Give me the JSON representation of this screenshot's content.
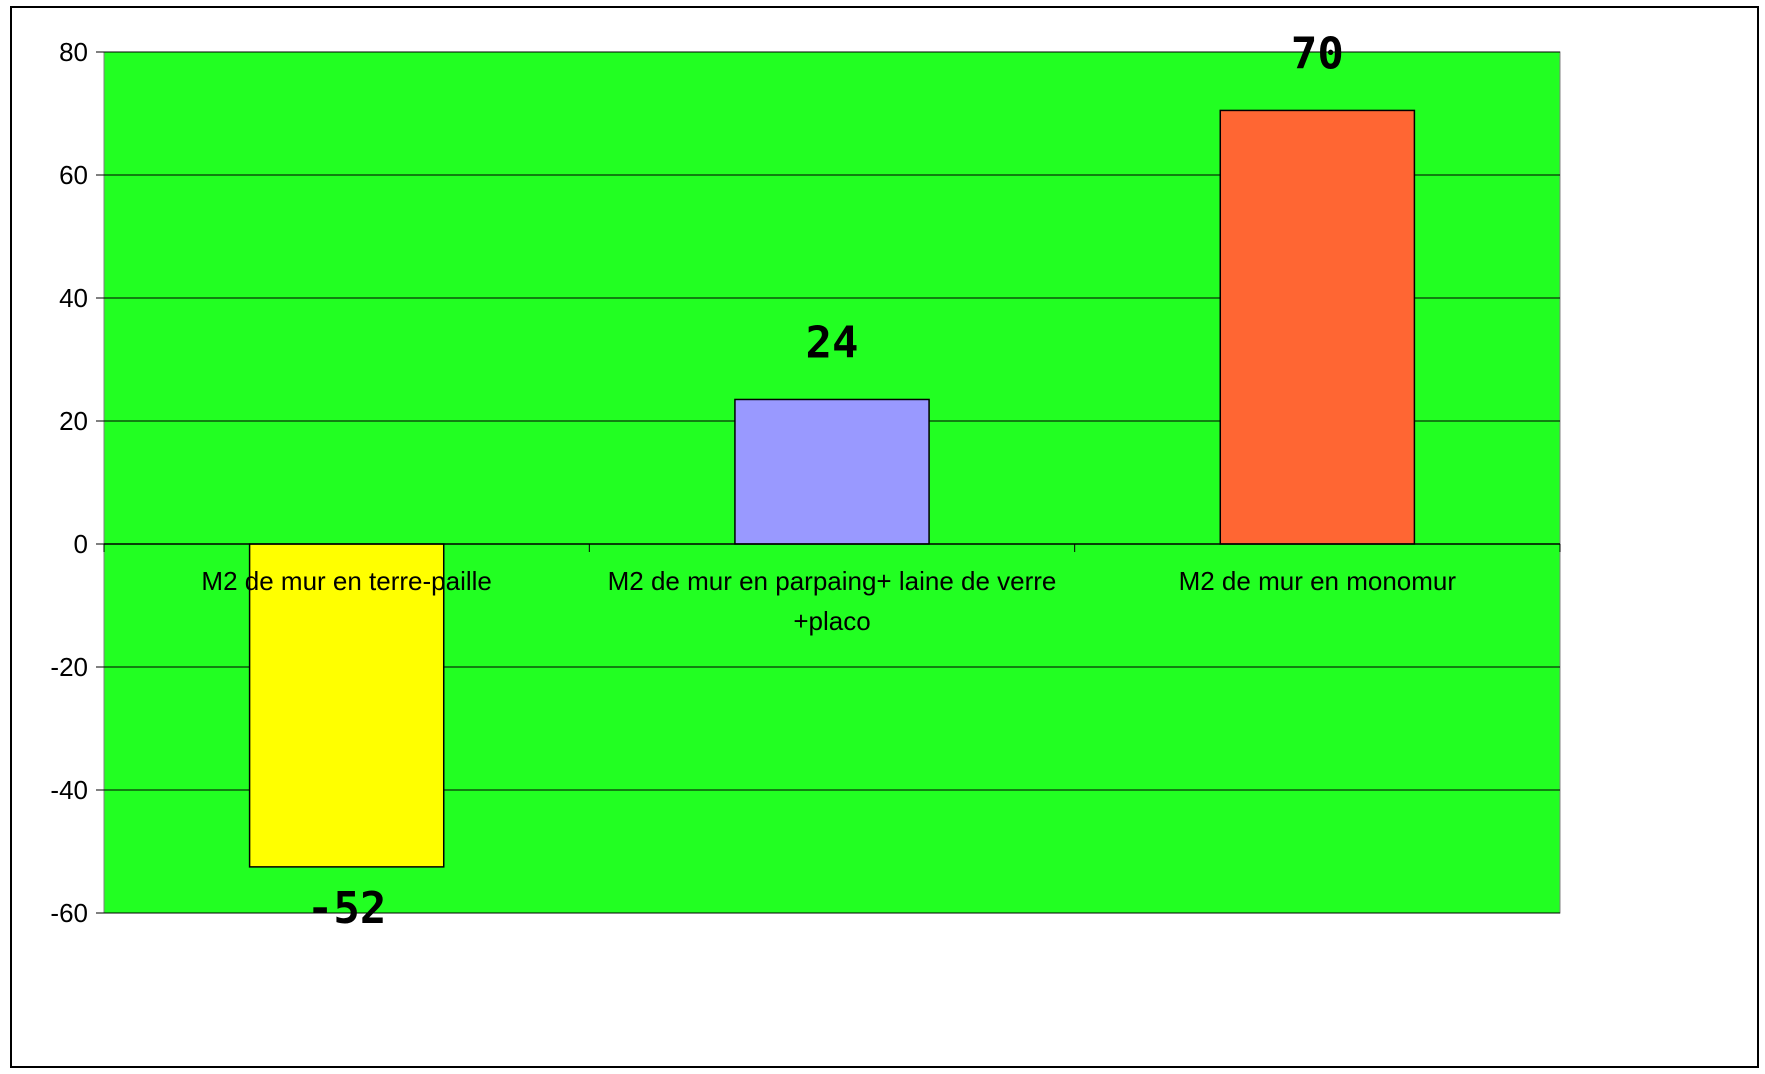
{
  "chart_data": {
    "type": "bar",
    "title": "",
    "xlabel": "",
    "ylabel": "",
    "categories": [
      "M2 de mur en terre-paille",
      "M2 de mur en parpaing+ laine de verre +placo",
      "M2 de mur en monomur"
    ],
    "category_lines": [
      [
        "M2 de mur en terre-paille"
      ],
      [
        "M2 de mur en parpaing+ laine de verre",
        "+placo"
      ],
      [
        "M2 de mur en monomur"
      ]
    ],
    "values": [
      -52.5,
      23.5,
      70.5
    ],
    "data_labels": [
      "-52",
      "24",
      "70"
    ],
    "ylim": [
      -60,
      80
    ],
    "yticks": [
      80,
      60,
      40,
      20,
      0,
      -20,
      -40,
      -60
    ],
    "ytick_labels": [
      "80",
      "60",
      "40",
      "20",
      "0",
      "-20",
      "-40",
      "-60"
    ],
    "grid": true,
    "legend": "none",
    "colors": {
      "plot_background": "#22FF22",
      "bars": [
        "#FFFF00",
        "#9999FF",
        "#FF6633"
      ],
      "gridline": "#000000",
      "bar_border": "#000000"
    }
  }
}
